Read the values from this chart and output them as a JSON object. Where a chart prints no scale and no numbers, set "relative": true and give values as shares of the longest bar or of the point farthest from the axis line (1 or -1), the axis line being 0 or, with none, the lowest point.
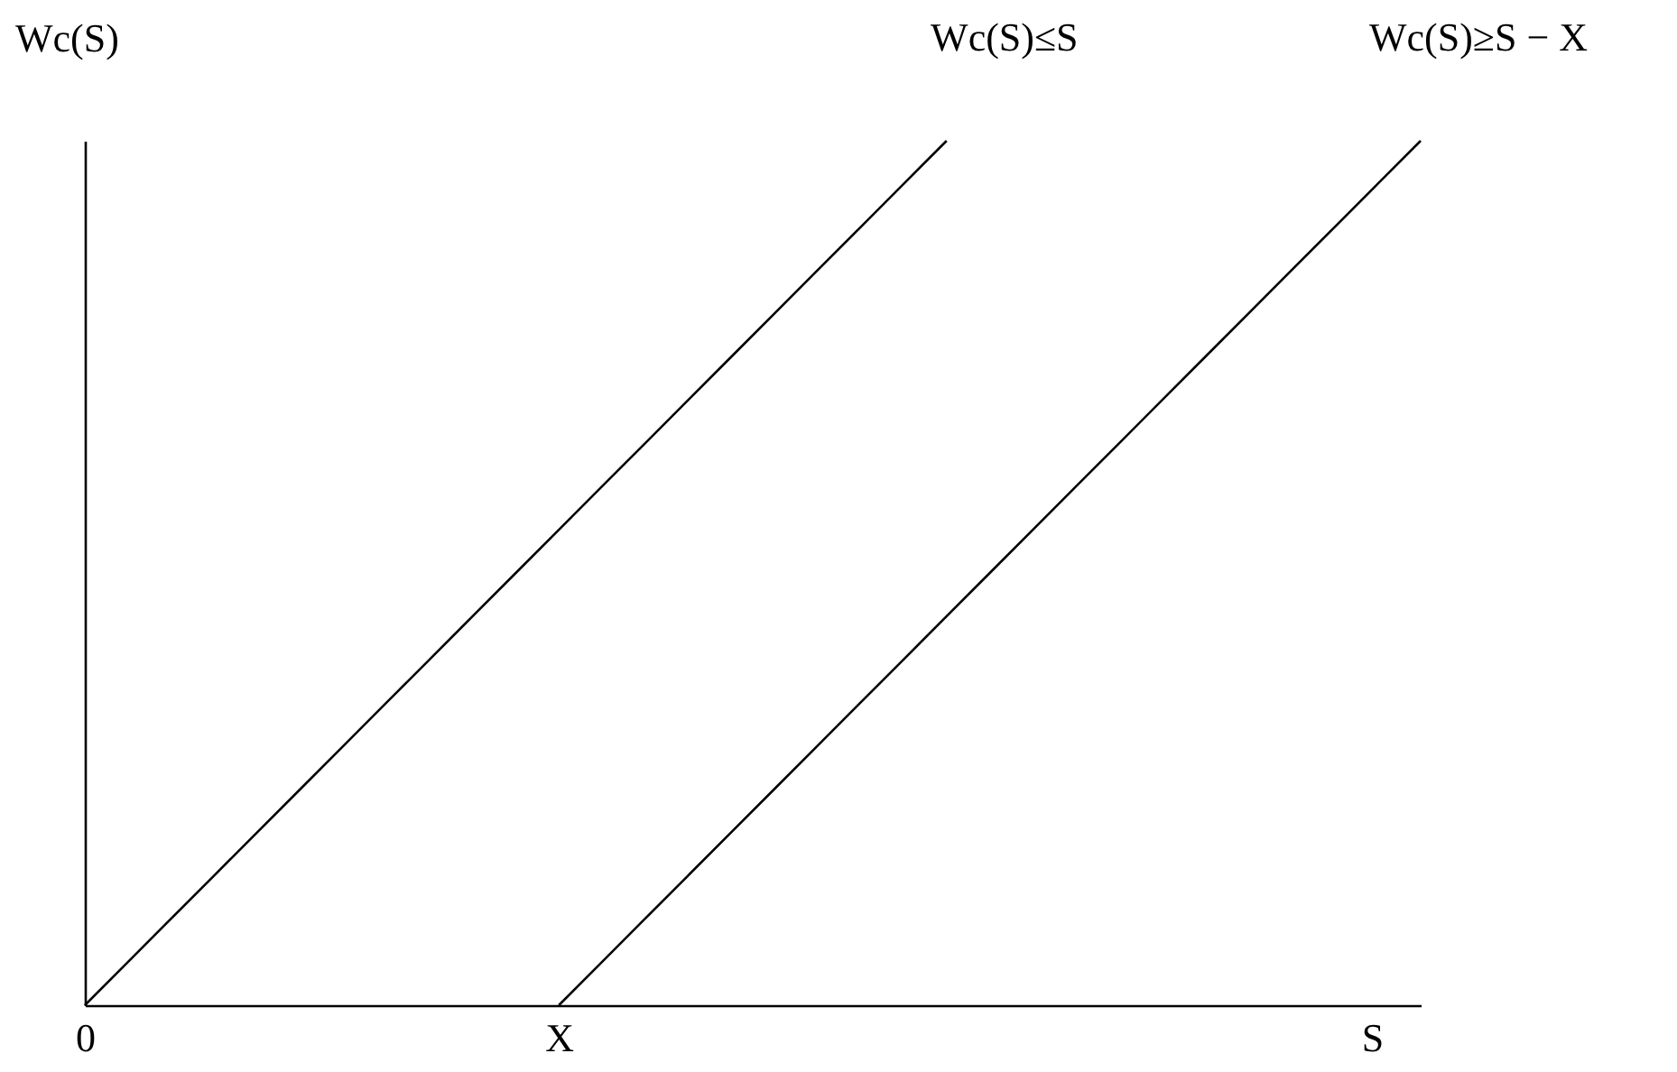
{
  "chart_data": {
    "type": "line",
    "relative": true,
    "xlabel": "S",
    "ylabel": "Wc(S)",
    "categories": [
      "0",
      null,
      null,
      null,
      null,
      null,
      null,
      null,
      null,
      null,
      null,
      "X",
      null,
      null,
      null,
      null,
      null,
      null,
      null,
      null,
      null,
      null,
      null,
      null,
      null,
      null,
      null,
      null,
      null,
      null,
      null,
      null
    ],
    "series": [
      {
        "name": "Wc(S)≤S",
        "color": "#000000",
        "values": [
          0,
          0.05,
          0.1,
          0.15,
          0.2,
          0.25,
          0.3,
          0.35,
          0.4,
          0.45,
          0.5,
          0.55,
          0.6,
          0.65,
          0.7,
          0.75,
          0.8,
          0.85,
          0.9,
          0.95,
          1,
          null,
          null,
          null,
          null,
          null,
          null,
          null,
          null,
          null,
          null,
          null
        ]
      },
      {
        "name": "Wc(S)≥S − X",
        "color": "#000000",
        "values": [
          null,
          null,
          null,
          null,
          null,
          null,
          null,
          null,
          null,
          null,
          null,
          0,
          0.05,
          0.1,
          0.15,
          0.2,
          0.25,
          0.3,
          0.35,
          0.4,
          0.45,
          0.5,
          0.55,
          0.6,
          0.65,
          0.7,
          0.75,
          0.8,
          0.85,
          0.9,
          0.95,
          1
        ]
      }
    ]
  }
}
